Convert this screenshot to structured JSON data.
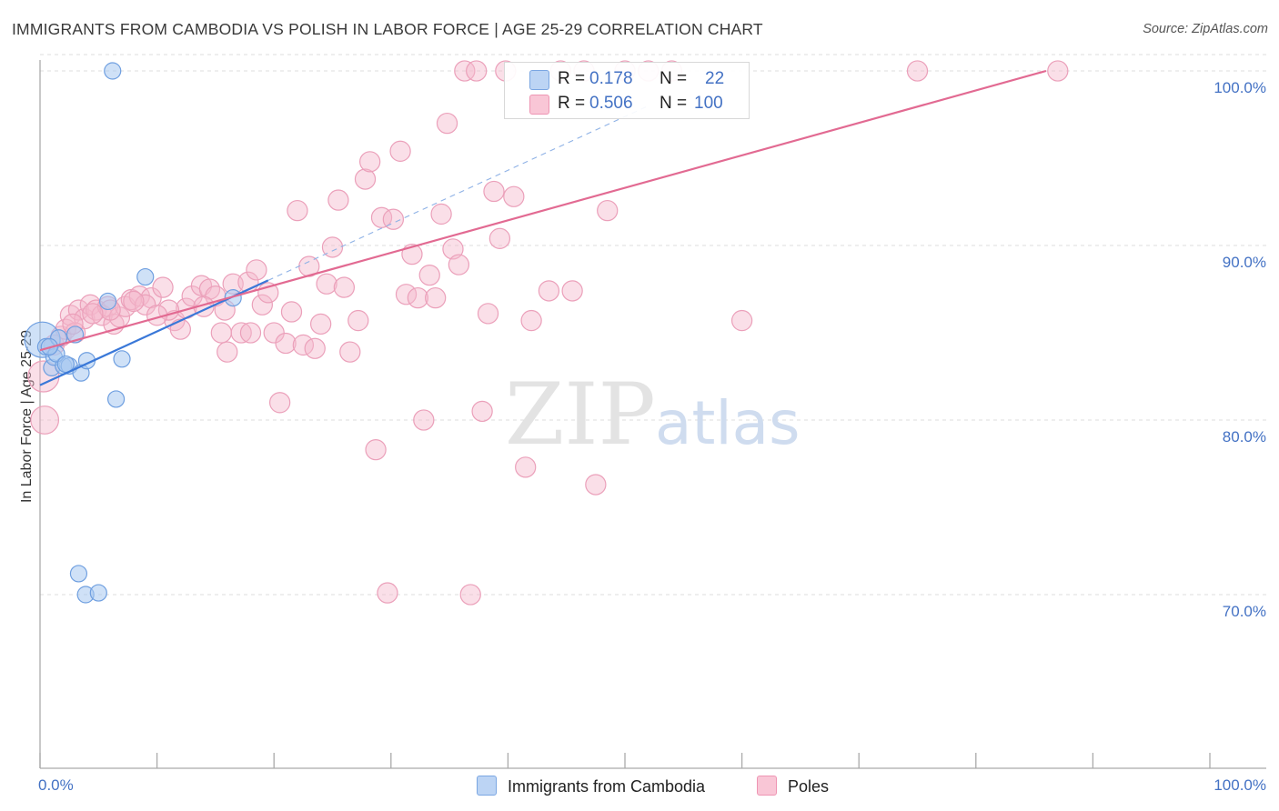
{
  "title": "IMMIGRANTS FROM CAMBODIA VS POLISH IN LABOR FORCE | AGE 25-29 CORRELATION CHART",
  "source": "Source: ZipAtlas.com",
  "watermark": {
    "zip": "ZIP",
    "atlas": "atlas"
  },
  "colors": {
    "blue": "#a8c8f0",
    "blue_line": "#3a78d8",
    "pink": "#f5b8cc",
    "pink_line": "#e26a92",
    "axis_text": "#4472c4"
  },
  "stats": {
    "rows": [
      {
        "r_label": "R =",
        "r_value": "0.178",
        "n_label": "N =",
        "n_value": "22"
      },
      {
        "r_label": "R =",
        "r_value": "0.506",
        "n_label": "N =",
        "n_value": "100"
      }
    ]
  },
  "legend": {
    "series1": "Immigrants from Cambodia",
    "series2": "Poles"
  },
  "chart_data": {
    "type": "scatter",
    "title": "IMMIGRANTS FROM CAMBODIA VS POLISH IN LABOR FORCE | AGE 25-29 CORRELATION CHART",
    "xlabel": "",
    "ylabel": "In Labor Force | Age 25-29",
    "xlim": [
      0,
      100
    ],
    "ylim": [
      60,
      100
    ],
    "x_tick_labels": [
      "0.0%",
      "100.0%"
    ],
    "y_ticks": [
      70,
      80,
      90,
      100
    ],
    "y_tick_labels": [
      "70.0%",
      "80.0%",
      "90.0%",
      "100.0%"
    ],
    "grid": true,
    "series": [
      {
        "name": "Immigrants from Cambodia",
        "color": "#a8c8f0",
        "trend": {
          "x0": 0.0,
          "y0": 82.0,
          "x1": 19.5,
          "y1": 88.0,
          "dashed_to_x": 52.0
        },
        "points": [
          [
            0.2,
            84.6,
            2.6
          ],
          [
            0.5,
            84.2,
            1.2
          ],
          [
            1.0,
            83.0,
            1.2
          ],
          [
            1.2,
            83.6,
            1.2
          ],
          [
            1.6,
            84.7,
            1.2
          ],
          [
            2.0,
            83.1,
            1.2
          ],
          [
            2.5,
            83.1,
            1.2
          ],
          [
            3.0,
            84.9,
            1.2
          ],
          [
            3.5,
            82.7,
            1.2
          ],
          [
            4.0,
            83.4,
            1.2
          ],
          [
            5.8,
            86.8,
            1.2
          ],
          [
            6.2,
            100.0,
            1.2
          ],
          [
            6.5,
            81.2,
            1.2
          ],
          [
            7.0,
            83.5,
            1.2
          ],
          [
            9.0,
            88.2,
            1.2
          ],
          [
            16.5,
            87.0,
            1.2
          ],
          [
            3.3,
            71.2,
            1.2
          ],
          [
            3.9,
            70.0,
            1.2
          ],
          [
            5.0,
            70.1,
            1.2
          ],
          [
            1.4,
            83.8,
            1.2
          ],
          [
            2.2,
            83.2,
            1.2
          ],
          [
            0.8,
            84.2,
            1.2
          ]
        ]
      },
      {
        "name": "Poles",
        "color": "#f5b8cc",
        "trend": {
          "x0": 0.0,
          "y0": 84.0,
          "x1": 86.0,
          "y1": 100.0
        },
        "points": [
          [
            0.3,
            82.5,
            2.0
          ],
          [
            0.4,
            80.0,
            1.8
          ],
          [
            1.2,
            84.3,
            1.3
          ],
          [
            1.8,
            84.8,
            1.3
          ],
          [
            2.2,
            85.2,
            1.3
          ],
          [
            2.6,
            86.0,
            1.3
          ],
          [
            3.3,
            86.3,
            1.3
          ],
          [
            3.8,
            85.8,
            1.3
          ],
          [
            4.3,
            86.6,
            1.3
          ],
          [
            4.8,
            86.3,
            1.3
          ],
          [
            5.3,
            86.0,
            1.3
          ],
          [
            5.8,
            86.5,
            1.3
          ],
          [
            6.3,
            85.5,
            1.3
          ],
          [
            6.8,
            85.9,
            1.3
          ],
          [
            7.3,
            86.5,
            1.3
          ],
          [
            7.8,
            86.9,
            1.3
          ],
          [
            8.5,
            87.1,
            1.3
          ],
          [
            9.5,
            87.0,
            1.3
          ],
          [
            10.5,
            87.6,
            1.3
          ],
          [
            11.5,
            85.7,
            1.3
          ],
          [
            12.5,
            86.4,
            1.3
          ],
          [
            13.0,
            87.1,
            1.3
          ],
          [
            13.8,
            87.7,
            1.3
          ],
          [
            14.5,
            87.5,
            1.3
          ],
          [
            15.0,
            87.1,
            1.3
          ],
          [
            15.8,
            86.3,
            1.3
          ],
          [
            16.5,
            87.8,
            1.3
          ],
          [
            17.2,
            85.0,
            1.3
          ],
          [
            17.8,
            87.9,
            1.3
          ],
          [
            18.5,
            88.6,
            1.3
          ],
          [
            19.0,
            86.6,
            1.3
          ],
          [
            19.5,
            87.3,
            1.3
          ],
          [
            20.0,
            85.0,
            1.3
          ],
          [
            20.5,
            81.0,
            1.3
          ],
          [
            21.0,
            84.4,
            1.3
          ],
          [
            21.5,
            86.2,
            1.3
          ],
          [
            22.0,
            92.0,
            1.3
          ],
          [
            22.5,
            84.3,
            1.3
          ],
          [
            23.0,
            88.8,
            1.3
          ],
          [
            23.5,
            84.1,
            1.3
          ],
          [
            24.0,
            85.5,
            1.3
          ],
          [
            24.5,
            87.8,
            1.3
          ],
          [
            25.0,
            89.9,
            1.3
          ],
          [
            25.5,
            92.6,
            1.3
          ],
          [
            26.0,
            87.6,
            1.3
          ],
          [
            26.5,
            83.9,
            1.3
          ],
          [
            27.2,
            85.7,
            1.3
          ],
          [
            27.8,
            93.8,
            1.3
          ],
          [
            28.2,
            94.8,
            1.3
          ],
          [
            28.7,
            78.3,
            1.3
          ],
          [
            29.2,
            91.6,
            1.3
          ],
          [
            29.7,
            70.1,
            1.3
          ],
          [
            30.2,
            91.5,
            1.3
          ],
          [
            30.8,
            95.4,
            1.3
          ],
          [
            31.3,
            87.2,
            1.3
          ],
          [
            31.8,
            89.5,
            1.3
          ],
          [
            32.3,
            87.0,
            1.3
          ],
          [
            32.8,
            80.0,
            1.3
          ],
          [
            33.3,
            88.3,
            1.3
          ],
          [
            33.8,
            87.0,
            1.3
          ],
          [
            34.3,
            91.8,
            1.3
          ],
          [
            34.8,
            97.0,
            1.3
          ],
          [
            35.3,
            89.8,
            1.3
          ],
          [
            35.8,
            88.9,
            1.3
          ],
          [
            36.3,
            100.0,
            1.3
          ],
          [
            36.8,
            70.0,
            1.3
          ],
          [
            37.3,
            100.0,
            1.3
          ],
          [
            37.8,
            80.5,
            1.3
          ],
          [
            38.3,
            86.1,
            1.3
          ],
          [
            38.8,
            93.1,
            1.3
          ],
          [
            39.3,
            90.4,
            1.3
          ],
          [
            39.8,
            100.0,
            1.3
          ],
          [
            40.5,
            92.8,
            1.3
          ],
          [
            41.5,
            77.3,
            1.3
          ],
          [
            42.0,
            85.7,
            1.3
          ],
          [
            43.5,
            87.4,
            1.3
          ],
          [
            44.5,
            100.0,
            1.3
          ],
          [
            45.5,
            87.4,
            1.3
          ],
          [
            46.5,
            100.0,
            1.3
          ],
          [
            47.5,
            76.3,
            1.3
          ],
          [
            48.5,
            92.0,
            1.3
          ],
          [
            50.0,
            100.0,
            1.3
          ],
          [
            52.0,
            100.0,
            1.3
          ],
          [
            54.0,
            100.0,
            1.3
          ],
          [
            60.0,
            85.7,
            1.3
          ],
          [
            75.0,
            100.0,
            1.3
          ],
          [
            87.0,
            100.0,
            1.3
          ],
          [
            9.0,
            86.6,
            1.3
          ],
          [
            11.0,
            86.3,
            1.3
          ],
          [
            14.0,
            86.5,
            1.3
          ],
          [
            16.0,
            83.9,
            1.3
          ],
          [
            18.0,
            85.0,
            1.3
          ],
          [
            6.0,
            86.3,
            1.3
          ],
          [
            3.0,
            85.0,
            1.3
          ],
          [
            8.0,
            86.8,
            1.3
          ],
          [
            12.0,
            85.2,
            1.3
          ],
          [
            10.0,
            86.0,
            1.3
          ],
          [
            15.5,
            85.0,
            1.3
          ],
          [
            2.8,
            85.5,
            1.3
          ],
          [
            4.5,
            86.1,
            1.3
          ]
        ]
      }
    ]
  }
}
